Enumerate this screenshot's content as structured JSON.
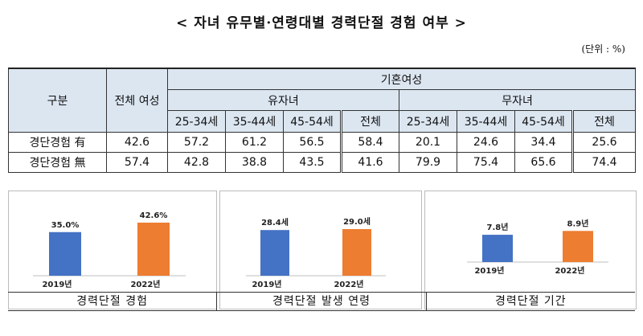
{
  "title": "< 자녀 유무별·연령대별 경력단절 경험 여부 >",
  "unit": "(단위 : %)",
  "table": {
    "h_category": "구분",
    "h_all_women": "전체 여성",
    "h_married": "기혼여성",
    "h_with_children": "유자녀",
    "h_without_children": "무자녀",
    "age_cols": [
      "25-34세",
      "35-44세",
      "45-54세",
      "전체"
    ],
    "rows": [
      {
        "label": "경단경험 有",
        "all": "42.6",
        "with": [
          "57.2",
          "61.2",
          "56.5",
          "58.4"
        ],
        "without": [
          "20.1",
          "24.6",
          "34.4",
          "25.6"
        ]
      },
      {
        "label": "경단경험 無",
        "all": "57.4",
        "with": [
          "42.8",
          "38.8",
          "43.5",
          "41.6"
        ],
        "without": [
          "79.9",
          "75.4",
          "65.6",
          "74.4"
        ]
      }
    ]
  },
  "chart_data": [
    {
      "type": "bar",
      "categories": [
        "2019년",
        "2022년"
      ],
      "values": [
        35.0,
        42.6
      ],
      "value_labels": [
        "35.0%",
        "42.6%"
      ],
      "title": "경력단절 경험",
      "colors": [
        "#4472c4",
        "#ed7d31"
      ]
    },
    {
      "type": "bar",
      "categories": [
        "2019년",
        "2022년"
      ],
      "values": [
        28.4,
        29.0
      ],
      "value_labels": [
        "28.4세",
        "29.0세"
      ],
      "title": "경력단절 발생 연령",
      "colors": [
        "#4472c4",
        "#ed7d31"
      ]
    },
    {
      "type": "bar",
      "categories": [
        "2019년",
        "2022년"
      ],
      "values": [
        7.8,
        8.9
      ],
      "value_labels": [
        "7.8년",
        "8.9년"
      ],
      "title": "경력단절 기간",
      "colors": [
        "#4472c4",
        "#ed7d31"
      ]
    }
  ]
}
